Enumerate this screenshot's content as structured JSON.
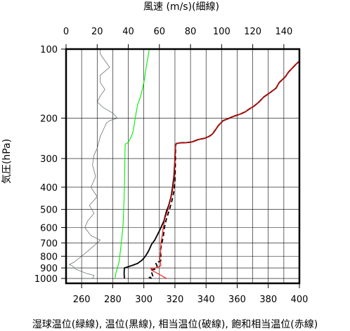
{
  "chart_data": {
    "type": "line",
    "title": "",
    "top_axis_label": "風速 (m/s)(細線)",
    "ylabel": "気圧(hPa)",
    "xlabel": "湿球温位(緑線), 温位(黒線), 相当温位(破線), 飽和相当温位(赤線)",
    "y_scale": "log",
    "y_reversed": true,
    "ylim": [
      1050,
      100
    ],
    "xlim": [
      250,
      400
    ],
    "wind_xlim": [
      0,
      150
    ],
    "grid": true,
    "y_ticks": [
      100,
      200,
      300,
      400,
      500,
      600,
      700,
      800,
      900,
      1000
    ],
    "x_ticks": [
      260,
      280,
      300,
      320,
      340,
      360,
      380,
      400
    ],
    "wind_ticks": [
      0,
      20,
      40,
      60,
      80,
      100,
      120,
      140
    ],
    "colors": {
      "wet_bulb_theta": "#00ee00",
      "theta": "#000000",
      "theta_e": "#000000",
      "theta_es": "#ff0000",
      "wind": "#556655",
      "grid": "#000000"
    },
    "series": [
      {
        "name": "湿球温位",
        "color": "#00ee00",
        "style": "solid",
        "points": [
          [
            281.5,
            1000
          ],
          [
            282,
            950
          ],
          [
            283,
            900
          ],
          [
            284,
            850
          ],
          [
            284.5,
            800
          ],
          [
            285,
            750
          ],
          [
            285.5,
            700
          ],
          [
            286,
            650
          ],
          [
            286.5,
            600
          ],
          [
            286.8,
            550
          ],
          [
            287,
            500
          ],
          [
            287.3,
            450
          ],
          [
            287.5,
            400
          ],
          [
            287.7,
            350
          ],
          [
            287.8,
            300
          ],
          [
            288,
            260
          ],
          [
            290,
            255
          ],
          [
            292,
            240
          ],
          [
            293,
            230
          ],
          [
            294,
            210
          ],
          [
            295,
            190
          ],
          [
            296,
            175
          ],
          [
            298,
            160
          ],
          [
            299,
            150
          ],
          [
            300,
            140
          ],
          [
            300.8,
            130
          ],
          [
            301.5,
            120
          ],
          [
            302.5,
            110
          ],
          [
            303.5,
            100
          ]
        ]
      },
      {
        "name": "温位",
        "color": "#000000",
        "style": "solid",
        "points": [
          [
            287.5,
            1000
          ],
          [
            287.3,
            950
          ],
          [
            287.5,
            900
          ],
          [
            292,
            880
          ],
          [
            296,
            860
          ],
          [
            299,
            830
          ],
          [
            301,
            800
          ],
          [
            303,
            760
          ],
          [
            305,
            710
          ],
          [
            307,
            680
          ],
          [
            310,
            620
          ],
          [
            313,
            560
          ],
          [
            314.5,
            510
          ],
          [
            316,
            480
          ],
          [
            317.5,
            440
          ],
          [
            318.5,
            400
          ],
          [
            319.3,
            360
          ],
          [
            319.8,
            320
          ],
          [
            320,
            300
          ],
          [
            320.3,
            262
          ],
          [
            321,
            258
          ],
          [
            324,
            256
          ],
          [
            327,
            256
          ],
          [
            331,
            254
          ],
          [
            335,
            248
          ],
          [
            339,
            245
          ],
          [
            342,
            240
          ],
          [
            344,
            235
          ],
          [
            346,
            225
          ],
          [
            348,
            215
          ],
          [
            351,
            205
          ],
          [
            355,
            200
          ],
          [
            358,
            196
          ],
          [
            362,
            192
          ],
          [
            365,
            188
          ],
          [
            368,
            182
          ],
          [
            371,
            177
          ],
          [
            374,
            170
          ],
          [
            377,
            162
          ],
          [
            381,
            155
          ],
          [
            385,
            148
          ],
          [
            387,
            140
          ],
          [
            391,
            132
          ],
          [
            393,
            126
          ],
          [
            396,
            120
          ],
          [
            398,
            116
          ],
          [
            400,
            113
          ]
        ]
      },
      {
        "name": "相当温位",
        "color": "#000000",
        "style": "dashed",
        "points": [
          [
            305,
            1000
          ],
          [
            303.5,
            990
          ],
          [
            306,
            985
          ],
          [
            305,
            940
          ],
          [
            304.5,
            920
          ],
          [
            307.5,
            910
          ],
          [
            308.5,
            880
          ],
          [
            307.5,
            855
          ],
          [
            310.8,
            840
          ],
          [
            311,
            800
          ],
          [
            310.6,
            760
          ],
          [
            311.6,
            700
          ],
          [
            312.5,
            660
          ],
          [
            313.2,
            600
          ],
          [
            314.5,
            550
          ],
          [
            316.5,
            500
          ],
          [
            318,
            460
          ],
          [
            319.2,
            420
          ],
          [
            320,
            380
          ],
          [
            320.2,
            330
          ],
          [
            320.3,
            300
          ],
          [
            320.4,
            262
          ],
          [
            321,
            258
          ],
          [
            324,
            256
          ],
          [
            327,
            256
          ],
          [
            331,
            254
          ],
          [
            335,
            248
          ],
          [
            339,
            245
          ],
          [
            342,
            240
          ],
          [
            344,
            235
          ],
          [
            346,
            225
          ],
          [
            348,
            215
          ],
          [
            351,
            205
          ],
          [
            355,
            200
          ],
          [
            358,
            196
          ],
          [
            362,
            192
          ],
          [
            365,
            188
          ],
          [
            368,
            182
          ],
          [
            371,
            177
          ],
          [
            374,
            170
          ],
          [
            377,
            162
          ],
          [
            381,
            155
          ],
          [
            385,
            148
          ],
          [
            387,
            140
          ],
          [
            391,
            132
          ],
          [
            393,
            126
          ],
          [
            396,
            120
          ],
          [
            398,
            116
          ],
          [
            400,
            113
          ]
        ]
      },
      {
        "name": "飽和相当温位",
        "color": "#ff0000",
        "style": "solid",
        "points": [
          [
            314.5,
            1000
          ],
          [
            310,
            960
          ],
          [
            305,
            920
          ],
          [
            304.5,
            905
          ],
          [
            307.5,
            900
          ],
          [
            311,
            880
          ],
          [
            310.3,
            820
          ],
          [
            310.8,
            760
          ],
          [
            311,
            700
          ],
          [
            311.8,
            650
          ],
          [
            312.5,
            600
          ],
          [
            313.5,
            550
          ],
          [
            315.5,
            500
          ],
          [
            317,
            460
          ],
          [
            318.3,
            420
          ],
          [
            319.2,
            380
          ],
          [
            319.8,
            320
          ],
          [
            320.3,
            262
          ],
          [
            321,
            258
          ],
          [
            324,
            256
          ],
          [
            327,
            256
          ],
          [
            331,
            254
          ],
          [
            335,
            248
          ],
          [
            339,
            245
          ],
          [
            342,
            240
          ],
          [
            344,
            235
          ],
          [
            346,
            225
          ],
          [
            348,
            215
          ],
          [
            351,
            205
          ],
          [
            355,
            200
          ],
          [
            358,
            196
          ],
          [
            362,
            192
          ],
          [
            365,
            188
          ],
          [
            368,
            182
          ],
          [
            371,
            177
          ],
          [
            374,
            170
          ],
          [
            377,
            162
          ],
          [
            381,
            155
          ],
          [
            385,
            148
          ],
          [
            387,
            140
          ],
          [
            391,
            132
          ],
          [
            393,
            126
          ],
          [
            396,
            120
          ],
          [
            398,
            116
          ],
          [
            400,
            113
          ]
        ]
      },
      {
        "name": "風速",
        "color": "#556655",
        "style": "thin",
        "axis": "top",
        "points": [
          [
            17,
            1000
          ],
          [
            18,
            970
          ],
          [
            13,
            950
          ],
          [
            6,
            910
          ],
          [
            4,
            880
          ],
          [
            2,
            870
          ],
          [
            5,
            850
          ],
          [
            10,
            800
          ],
          [
            15,
            750
          ],
          [
            20,
            700
          ],
          [
            22,
            680
          ],
          [
            16,
            650
          ],
          [
            12,
            600
          ],
          [
            14,
            560
          ],
          [
            18,
            520
          ],
          [
            15,
            480
          ],
          [
            20,
            440
          ],
          [
            16,
            400
          ],
          [
            19,
            360
          ],
          [
            17,
            320
          ],
          [
            18,
            290
          ],
          [
            20,
            270
          ],
          [
            22,
            240
          ],
          [
            26,
            210
          ],
          [
            28,
            205
          ],
          [
            33,
            200
          ],
          [
            30,
            190
          ],
          [
            24,
            180
          ],
          [
            20,
            170
          ],
          [
            22,
            160
          ],
          [
            25,
            150
          ],
          [
            22,
            140
          ],
          [
            22,
            130
          ],
          [
            28,
            120
          ],
          [
            24,
            110
          ],
          [
            22,
            105
          ],
          [
            22,
            100
          ]
        ]
      }
    ]
  }
}
